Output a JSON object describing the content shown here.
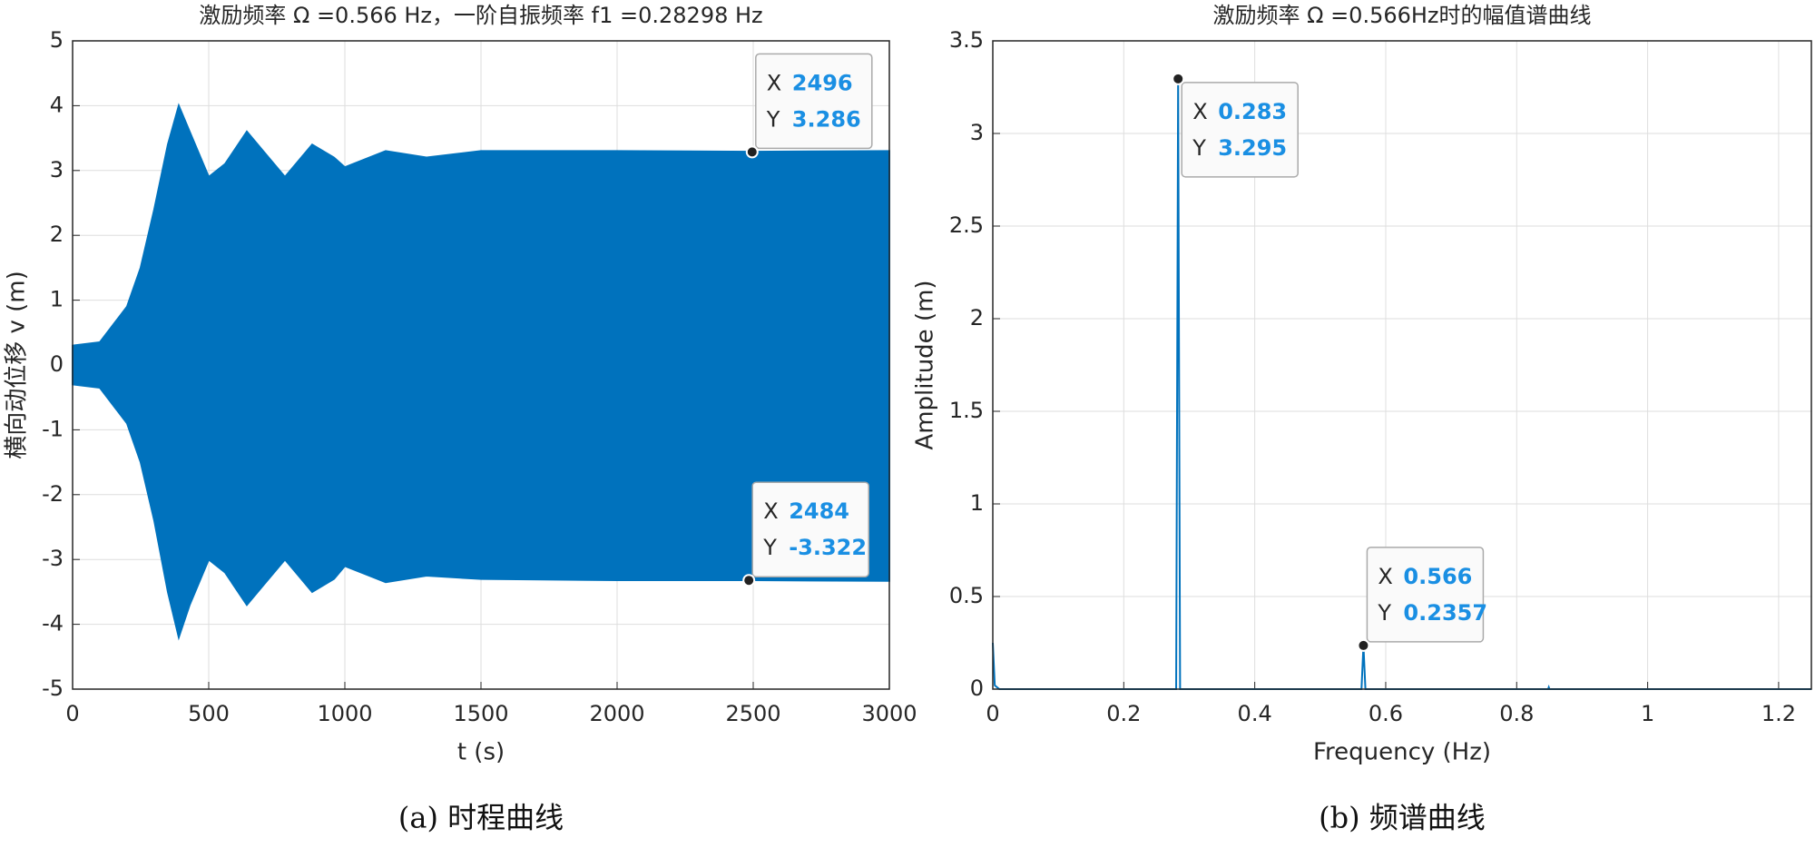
{
  "chart_data": [
    {
      "type": "band",
      "title": "激励频率 Ω =0.566 Hz，一阶自振频率 f1 =0.28298 Hz",
      "xlabel": "t (s)",
      "ylabel": "横向动位移 v (m)",
      "caption": "(a) 时程曲线",
      "color": "#0072bd",
      "x": [
        0,
        100,
        200,
        250,
        300,
        350,
        390,
        430,
        500,
        560,
        640,
        700,
        780,
        880,
        960,
        1000,
        1150,
        1300,
        1500,
        2000,
        2496,
        3000
      ],
      "high": [
        0.3,
        0.35,
        0.9,
        1.5,
        2.4,
        3.4,
        4.0,
        3.6,
        2.9,
        3.1,
        3.6,
        3.3,
        2.9,
        3.4,
        3.2,
        3.05,
        3.3,
        3.2,
        3.3,
        3.3,
        3.29,
        3.3
      ],
      "low": [
        -0.3,
        -0.35,
        -0.9,
        -1.5,
        -2.4,
        -3.5,
        -4.2,
        -3.7,
        -3.0,
        -3.2,
        -3.7,
        -3.4,
        -3.0,
        -3.5,
        -3.3,
        -3.1,
        -3.35,
        -3.25,
        -3.3,
        -3.32,
        -3.32,
        -3.33
      ],
      "xlim": [
        0,
        3000
      ],
      "ylim": [
        -5,
        5
      ],
      "xticks": [
        0,
        500,
        1000,
        1500,
        2000,
        2500,
        3000
      ],
      "yticks": [
        -5,
        -4,
        -3,
        -2,
        -1,
        0,
        1,
        2,
        3,
        4,
        5
      ],
      "grid": true,
      "datatip_labels": [
        "X",
        "Y"
      ],
      "datatips": [
        {
          "x": 2496,
          "y": 3.286
        },
        {
          "x": 2484,
          "y": -3.322
        }
      ]
    },
    {
      "type": "line",
      "title": "激励频率 Ω =0.566Hz时的幅值谱曲线",
      "xlabel": "Frequency (Hz)",
      "ylabel": "Amplitude (m)",
      "caption": "(b) 频谱曲线",
      "color": "#0072bd",
      "x": [
        0,
        0.003,
        0.01,
        0.28,
        0.283,
        0.286,
        0.563,
        0.566,
        0.569,
        0.848,
        0.849,
        0.85,
        1.25
      ],
      "values": [
        0.25,
        0.02,
        0,
        0,
        3.295,
        0,
        0,
        0.2357,
        0,
        0,
        0.01,
        0,
        0
      ],
      "xlim": [
        0,
        1.25
      ],
      "ylim": [
        0,
        3.5
      ],
      "xticks": [
        0,
        0.2,
        0.4,
        0.6,
        0.8,
        1,
        1.2
      ],
      "yticks": [
        0,
        0.5,
        1,
        1.5,
        2,
        2.5,
        3,
        3.5
      ],
      "grid": true,
      "datatip_labels": [
        "X",
        "Y"
      ],
      "datatips": [
        {
          "x": 0.283,
          "y": 3.295
        },
        {
          "x": 0.566,
          "y": 0.2357
        }
      ]
    }
  ]
}
